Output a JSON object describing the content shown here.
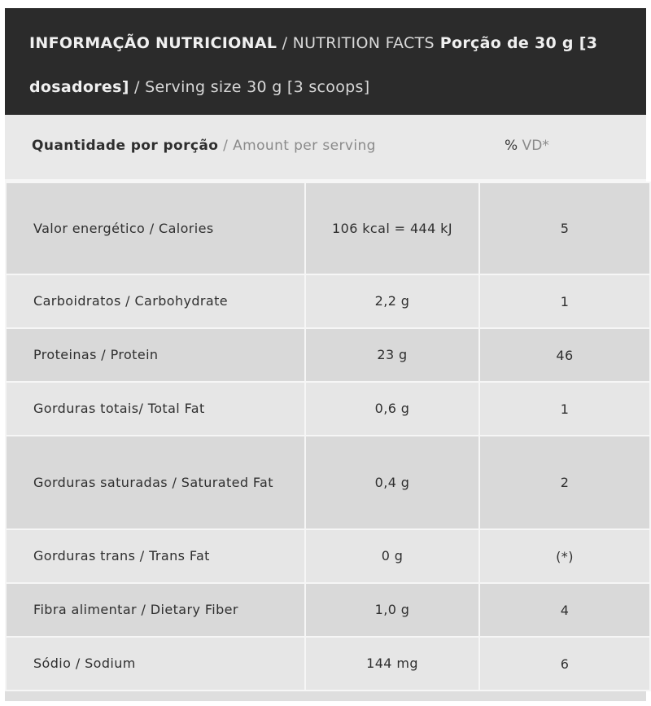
{
  "header": {
    "title_pt": "INFORMAÇÃO NUTRICIONAL",
    "sep1": " / ",
    "title_en": "NUTRITION FACTS",
    "serving_pt": " Porção de 30 g [3 dosadores]",
    "sep2": " / ",
    "serving_en": "Serving size 30 g [3 scoops]"
  },
  "subheader": {
    "amount_pt": "Quantidade por porção",
    "amount_sep": " / ",
    "amount_en": "Amount per serving",
    "dv_symbol": "%",
    "dv_label": " VD*"
  },
  "rows": [
    {
      "name": "Valor energético / Calories",
      "amount": "106 kcal = 444 kJ",
      "dv": "5"
    },
    {
      "name": "Carboidratos / Carbohydrate",
      "amount": "2,2 g",
      "dv": "1"
    },
    {
      "name": "Proteinas / Protein",
      "amount": "23 g",
      "dv": "46"
    },
    {
      "name": "Gorduras totais/ Total Fat",
      "amount": "0,6 g",
      "dv": "1"
    },
    {
      "name": "Gorduras saturadas / Saturated Fat",
      "amount": "0,4 g",
      "dv": "2"
    },
    {
      "name": "Gorduras trans / Trans Fat",
      "amount": "0 g",
      "dv": "(*)"
    },
    {
      "name": "Fibra alimentar / Dietary Fiber",
      "amount": "1,0 g",
      "dv": "4"
    },
    {
      "name": "Sódio / Sodium",
      "amount": "144 mg",
      "dv": "6"
    }
  ]
}
